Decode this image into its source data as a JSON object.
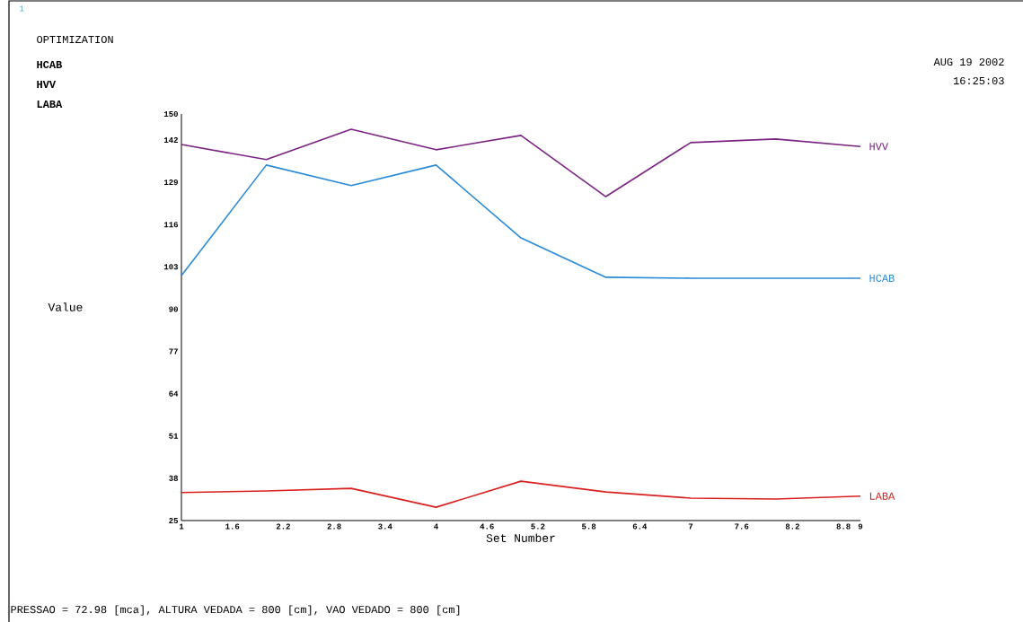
{
  "chart_data": {
    "type": "line",
    "title": "OPTIMIZATION",
    "xlabel": "Set Number",
    "x": [
      1,
      2,
      3,
      4,
      5,
      6,
      7,
      8,
      9
    ],
    "series": [
      {
        "name": "HVV",
        "color": "#7b2382",
        "values": [
          140.6,
          136,
          145.3,
          139,
          143.4,
          124.6,
          141.2,
          142.3,
          140
        ]
      },
      {
        "name": "HCAB",
        "color": "#2a8ad8",
        "values": [
          100.3,
          134.3,
          128,
          134.3,
          111.9,
          99.8,
          99.5,
          99.5,
          99.5
        ]
      },
      {
        "name": "LABA",
        "color": "#d9201e",
        "values": [
          33.6,
          34.1,
          34.9,
          29.1,
          37.1,
          33.8,
          31.9,
          31.6,
          32.5
        ]
      }
    ],
    "xlim": [
      1,
      9
    ],
    "ylim": [
      25,
      150
    ],
    "xticks": [
      1,
      1.6,
      2.2,
      2.8,
      3.4,
      4,
      4.6,
      5.2,
      5.8,
      6.4,
      7,
      7.6,
      8.2,
      8.8,
      9
    ],
    "yticks": [
      25,
      38,
      51,
      64,
      77,
      90,
      103,
      116,
      129,
      142,
      150
    ],
    "grid": false,
    "marker": "none",
    "line_style": "solid",
    "annotations": [
      "Value",
      "1",
      "HCAB",
      "HVV",
      "LABA",
      "AUG 19 2002",
      "16:25:03",
      "PRESSAO = 72.98 [mca],  ALTURA VEDADA = 800 [cm],  VAO VEDADO = 800 [cm]"
    ]
  }
}
